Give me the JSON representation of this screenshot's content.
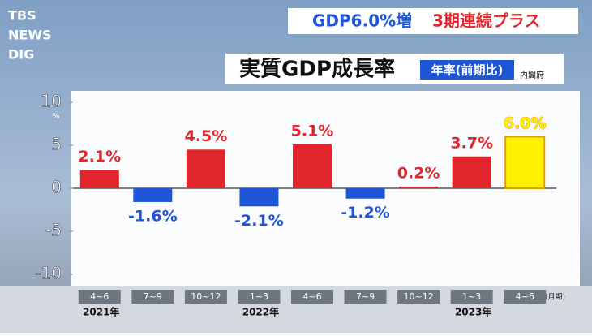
{
  "logo": [
    "TBS",
    "NEWS",
    "DIG"
  ],
  "headline": {
    "left": "GDP6.0%増",
    "right": "3期連続プラス"
  },
  "chart_data": {
    "type": "bar",
    "title": "実質GDP成長率",
    "badge": "年率(前期比)",
    "source": "内閣府",
    "y_unit": "%",
    "x_unit": "(月期)",
    "categories": [
      "4~6",
      "7~9",
      "10~12",
      "1~3",
      "4~6",
      "7~9",
      "10~12",
      "1~3",
      "4~6"
    ],
    "year_labels": [
      "2021年",
      null,
      null,
      "2022年",
      null,
      null,
      null,
      "2023年",
      null
    ],
    "values": [
      2.1,
      -1.6,
      4.5,
      -2.1,
      5.1,
      -1.2,
      0.2,
      3.7,
      6.0
    ],
    "value_labels": [
      "2.1%",
      "-1.6%",
      "4.5%",
      "-2.1%",
      "5.1%",
      "-1.2%",
      "0.2%",
      "3.7%",
      "6.0%"
    ],
    "colors": [
      "#e0262c",
      "#1f56d8",
      "#e0262c",
      "#1f56d8",
      "#e0262c",
      "#1f56d8",
      "#e0262c",
      "#e0262c",
      "#fff200"
    ],
    "label_colors": [
      "#e0262c",
      "#1f56d8",
      "#e0262c",
      "#1f56d8",
      "#e0262c",
      "#1f56d8",
      "#e0262c",
      "#e0262c",
      "#fff200"
    ],
    "ylim": [
      -10,
      10
    ],
    "yticks": [
      10,
      5,
      0,
      -5,
      -10
    ]
  }
}
